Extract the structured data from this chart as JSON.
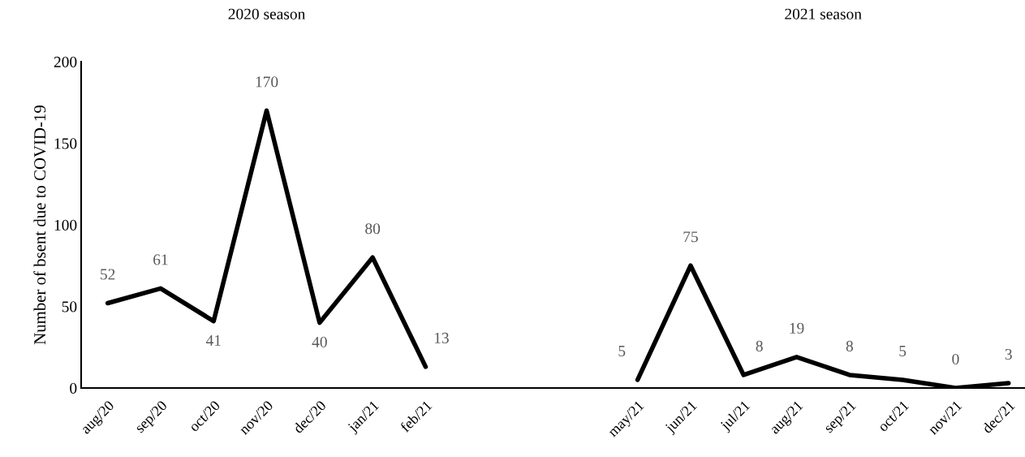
{
  "chart_data": {
    "type": "line",
    "ylabel": "Number of bsent due to COVID-19",
    "annotations": [
      "2020 season",
      "2021 season"
    ],
    "categories": [
      "aug/20",
      "sep/20",
      "oct/20",
      "nov/20",
      "dec/20",
      "jan/21",
      "feb/21",
      null,
      null,
      null,
      "may/21",
      "jun/21",
      "jul/21",
      "aug/21",
      "sep/21",
      "oct/21",
      "nov/21",
      "dec/21"
    ],
    "values": [
      52,
      61,
      41,
      170,
      40,
      80,
      13,
      null,
      null,
      null,
      5,
      75,
      8,
      19,
      8,
      5,
      0,
      3
    ],
    "color": "#000000",
    "ylim": [
      0,
      200
    ],
    "yticks": [
      0,
      50,
      100,
      150,
      200
    ],
    "data_labels": true,
    "grid": false,
    "legend": false
  }
}
